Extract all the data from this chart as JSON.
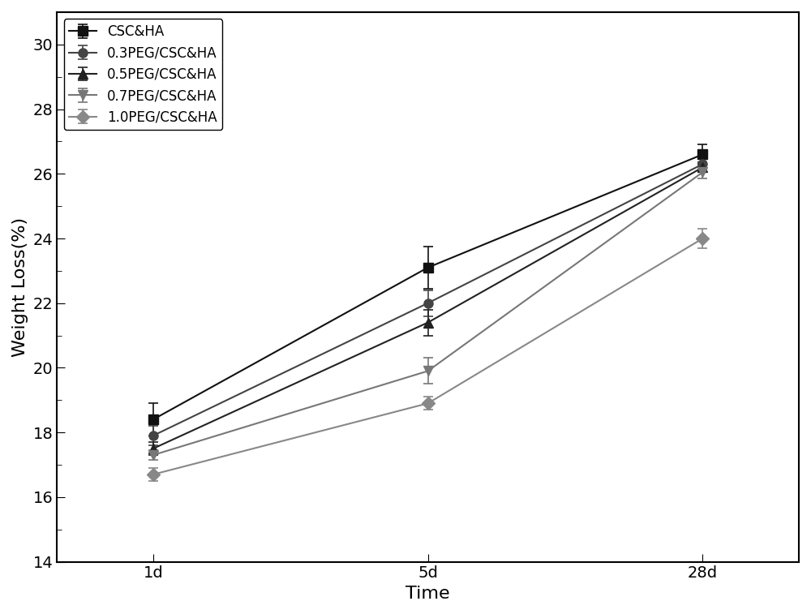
{
  "x_positions": [
    0,
    1,
    2
  ],
  "x_labels": [
    "1d",
    "5d",
    "28d"
  ],
  "xlabel": "Time",
  "ylabel": "Weight Loss(%)",
  "ylim": [
    14,
    31
  ],
  "yticks": [
    14,
    16,
    18,
    20,
    22,
    24,
    26,
    28,
    30
  ],
  "series": [
    {
      "label": "CSC&HA",
      "color": "#111111",
      "marker": "s",
      "values": [
        18.4,
        23.1,
        26.6
      ],
      "yerr": [
        0.5,
        0.65,
        0.3
      ]
    },
    {
      "label": "0.3PEG/CSC&HA",
      "color": "#444444",
      "marker": "o",
      "values": [
        17.9,
        22.0,
        26.3
      ],
      "yerr": [
        0.3,
        0.4,
        0.2
      ]
    },
    {
      "label": "0.5PEG/CSC&HA",
      "color": "#222222",
      "marker": "^",
      "values": [
        17.5,
        21.4,
        26.2
      ],
      "yerr": [
        0.2,
        0.4,
        0.15
      ]
    },
    {
      "label": "0.7PEG/CSC&HA",
      "color": "#777777",
      "marker": "v",
      "values": [
        17.3,
        19.9,
        26.05
      ],
      "yerr": [
        0.15,
        0.4,
        0.2
      ]
    },
    {
      "label": "1.0PEG/CSC&HA",
      "color": "#888888",
      "marker": "D",
      "values": [
        16.7,
        18.9,
        24.0
      ],
      "yerr": [
        0.2,
        0.2,
        0.3
      ]
    }
  ],
  "legend_loc": "upper left",
  "linewidth": 1.5,
  "markersize": 8,
  "axis_fontsize": 16,
  "tick_fontsize": 14,
  "legend_fontsize": 12,
  "fig_width": 10.0,
  "fig_height": 7.57,
  "background_color": "#ffffff",
  "xlim": [
    -0.35,
    2.35
  ]
}
